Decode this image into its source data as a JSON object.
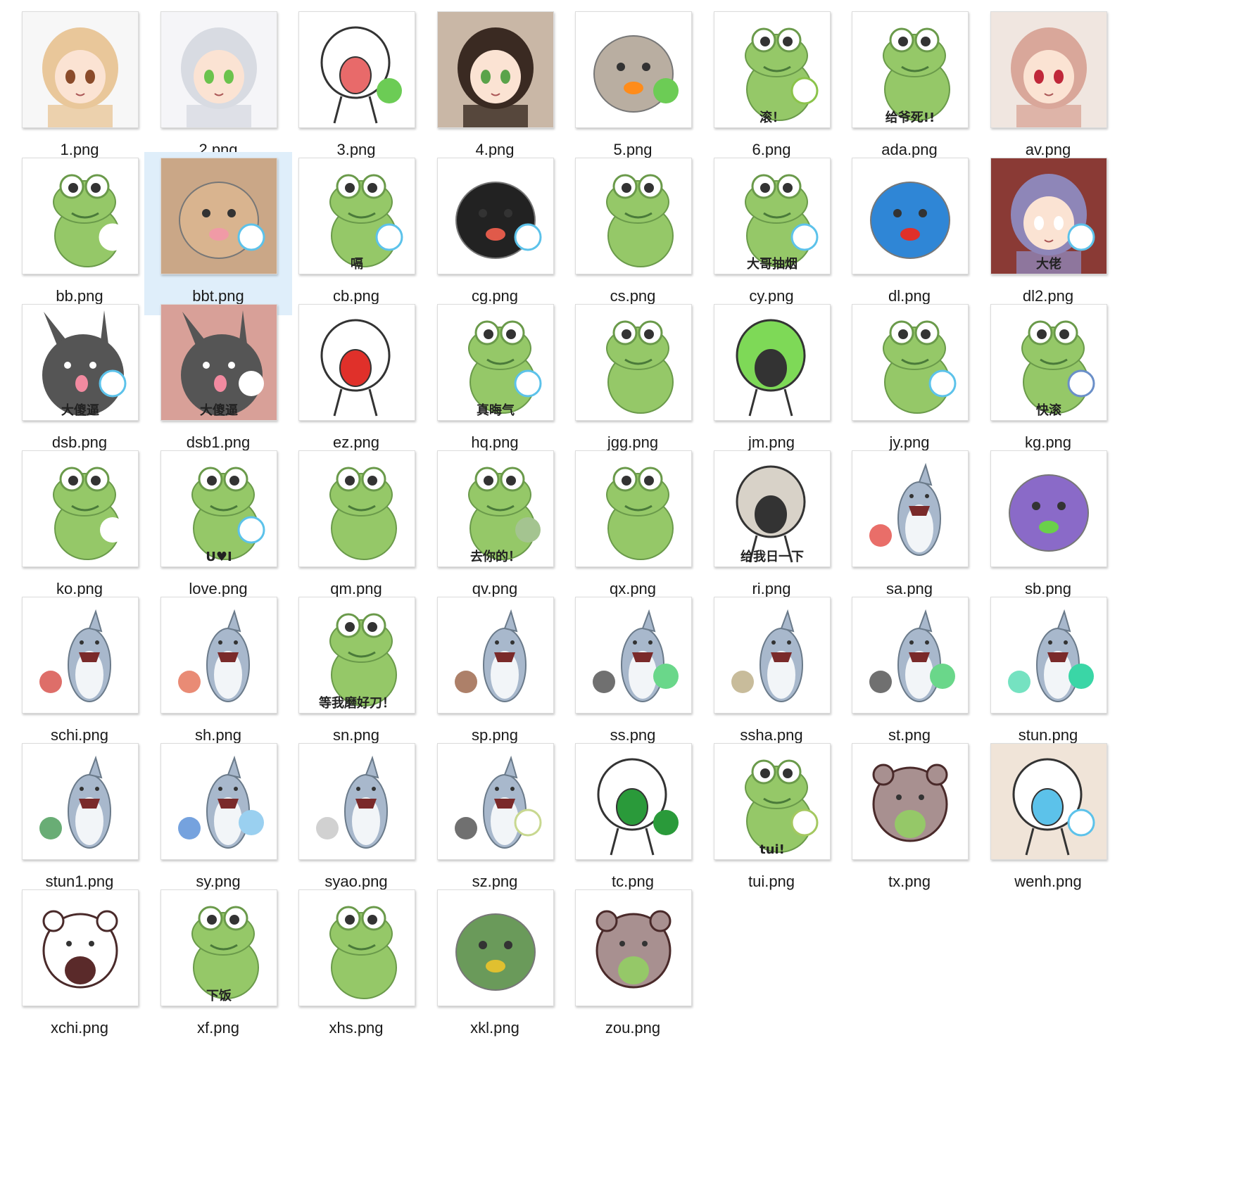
{
  "selected_file": "bbt.png",
  "files": [
    {
      "name": "1.png",
      "icon": "anime-fox-girl-thumbnail",
      "bg": "#f7f7f7",
      "main": "#e9c79a",
      "accent": "#8b4b2a"
    },
    {
      "name": "2.png",
      "icon": "anime-silver-hair-girl-thumbnail",
      "bg": "#f5f5f8",
      "main": "#d8dbe2",
      "accent": "#6bc34d"
    },
    {
      "name": "3.png",
      "icon": "screaming-bunny-thumbnail",
      "bg": "#ffffff",
      "main": "#ffffff",
      "accent": "#e86a6a",
      "dot": "#6ccc55",
      "dot_type": "fill"
    },
    {
      "name": "4.png",
      "icon": "anime-witch-girl-thumbnail",
      "bg": "#c9b7a6",
      "main": "#3a2a22",
      "accent": "#5aa34a"
    },
    {
      "name": "5.png",
      "icon": "pusheen-cat-thumbnail",
      "bg": "#ffffff",
      "main": "#b9aea1",
      "accent": "#ff8c1a",
      "dot": "#6ccc55",
      "dot_type": "fill"
    },
    {
      "name": "6.png",
      "icon": "green-frog-thumbnail",
      "bg": "#ffffff",
      "main": "#95c868",
      "accent": "#333333",
      "dot": "#8bc34a",
      "dot_type": "ring",
      "caption": "滚！"
    },
    {
      "name": "ada.png",
      "icon": "angry-frog-thumbnail",
      "bg": "#ffffff",
      "main": "#95c868",
      "accent": "#2d8fe0",
      "caption": "给爷死!!"
    },
    {
      "name": "av.png",
      "icon": "magazine-cover-thumbnail",
      "bg": "#f0e6e0",
      "main": "#d9a79a",
      "accent": "#c0283a"
    },
    {
      "name": "bb.png",
      "icon": "frog-hugging-thumbnail",
      "bg": "#ffffff",
      "main": "#95c868",
      "accent": "#f2a3b3",
      "dot": "#ffffff",
      "dot_type": "ring"
    },
    {
      "name": "bbt.png",
      "icon": "cat-licking-thumbnail",
      "bg": "#caa787",
      "main": "#d9b48f",
      "accent": "#f09aa6",
      "dot": "#5cc2ea",
      "dot_type": "ring"
    },
    {
      "name": "cb.png",
      "icon": "frog-thumbnail",
      "bg": "#ffffff",
      "main": "#95c868",
      "accent": "#333333",
      "dot": "#5cc2ea",
      "dot_type": "ring",
      "caption": "嗝"
    },
    {
      "name": "cg.png",
      "icon": "panda-meme-thumbnail",
      "bg": "#ffffff",
      "main": "#222222",
      "accent": "#e05a4a",
      "dot": "#5cc2ea",
      "dot_type": "ring"
    },
    {
      "name": "cs.png",
      "icon": "frog-thumbnail",
      "bg": "#ffffff",
      "main": "#95c868",
      "accent": "#9a6a3a"
    },
    {
      "name": "cy.png",
      "icon": "frog-smoking-thumbnail",
      "bg": "#ffffff",
      "main": "#95c868",
      "accent": "#c0283a",
      "dot": "#5cc2ea",
      "dot_type": "ring",
      "caption": "大哥抽烟"
    },
    {
      "name": "dl.png",
      "icon": "doraemon-thumbnail",
      "bg": "#ffffff",
      "main": "#2f86d6",
      "accent": "#e0302a"
    },
    {
      "name": "dl2.png",
      "icon": "purple-hair-character-thumbnail",
      "bg": "#8a3a35",
      "main": "#8e86b8",
      "accent": "#ffffff",
      "dot": "#5cc2ea",
      "dot_type": "ring",
      "caption": "大佬"
    },
    {
      "name": "dsb.png",
      "icon": "gray-bunny-thumbnail",
      "bg": "#ffffff",
      "main": "#555555",
      "accent": "#f28aa0",
      "dot": "#5cc2ea",
      "dot_type": "ring",
      "caption": "大傻逼"
    },
    {
      "name": "dsb1.png",
      "icon": "gray-bunny-thumbnail",
      "bg": "#d8a098",
      "main": "#555555",
      "accent": "#f28aa0",
      "dot": "#ffffff",
      "dot_type": "fill",
      "caption": "大傻逼"
    },
    {
      "name": "ez.png",
      "icon": "doodle-couple-thumbnail",
      "bg": "#ffffff",
      "main": "#ffffff",
      "accent": "#e0302a"
    },
    {
      "name": "hq.png",
      "icon": "angry-frog-thumbnail",
      "bg": "#ffffff",
      "main": "#95c868",
      "accent": "#9a6a3a",
      "dot": "#5cc2ea",
      "dot_type": "ring",
      "caption": "真晦气"
    },
    {
      "name": "jgg.png",
      "icon": "frog-with-pig-thumbnail",
      "bg": "#ffffff",
      "main": "#95c868",
      "accent": "#f4a3a8"
    },
    {
      "name": "jm.png",
      "icon": "doodle-friends-thumbnail",
      "bg": "#ffffff",
      "main": "#7ed957",
      "accent": "#333333"
    },
    {
      "name": "jy.png",
      "icon": "frog-in-jail-thumbnail",
      "bg": "#ffffff",
      "main": "#95c868",
      "accent": "#888888",
      "dot": "#5cc2ea",
      "dot_type": "ring"
    },
    {
      "name": "kg.png",
      "icon": "frog-with-hat-thumbnail",
      "bg": "#ffffff",
      "main": "#95c868",
      "accent": "#6a8fc8",
      "dot": "#6a8fc8",
      "dot_type": "ring",
      "caption": "快滚"
    },
    {
      "name": "ko.png",
      "icon": "frog-punched-thumbnail",
      "bg": "#ffffff",
      "main": "#95c868",
      "accent": "#e0302a",
      "dot": "#ffffff",
      "dot_type": "fill"
    },
    {
      "name": "love.png",
      "icon": "frog-with-sign-thumbnail",
      "bg": "#ffffff",
      "main": "#95c868",
      "accent": "#e07a9a",
      "dot": "#5cc2ea",
      "dot_type": "ring",
      "caption": "U♥I"
    },
    {
      "name": "qm.png",
      "icon": "frog-riding-horse-thumbnail",
      "bg": "#ffffff",
      "main": "#95c868",
      "accent": "#c48a55"
    },
    {
      "name": "qv.png",
      "icon": "frog-with-slipper-thumbnail",
      "bg": "#ffffff",
      "main": "#95c868",
      "accent": "#3a7ad0",
      "dot": "#a4c490",
      "dot_type": "fill",
      "caption": "去你的！"
    },
    {
      "name": "qx.png",
      "icon": "frog-on-bear-thumbnail",
      "bg": "#ffffff",
      "main": "#95c868",
      "accent": "#a89690"
    },
    {
      "name": "ri.png",
      "icon": "doodle-meme-thumbnail",
      "bg": "#ffffff",
      "main": "#d8d2c8",
      "accent": "#333333",
      "caption": "给我日一下"
    },
    {
      "name": "sa.png",
      "icon": "shark-thumbnail",
      "bg": "#ffffff",
      "main": "#a8b8cc",
      "accent": "#e0302a"
    },
    {
      "name": "sb.png",
      "icon": "robot-character-thumbnail",
      "bg": "#ffffff",
      "main": "#8a6ac8",
      "accent": "#6ad04a"
    },
    {
      "name": "schi.png",
      "icon": "shark-thumbnail",
      "bg": "#ffffff",
      "main": "#a8b8cc",
      "accent": "#d0302a"
    },
    {
      "name": "sh.png",
      "icon": "shark-painter-thumbnail",
      "bg": "#ffffff",
      "main": "#a8b8cc",
      "accent": "#e05a3a"
    },
    {
      "name": "sn.png",
      "icon": "frog-sharpening-knife-thumbnail",
      "bg": "#ffffff",
      "main": "#95c868",
      "accent": "#555555",
      "caption": "等我磨好刀！"
    },
    {
      "name": "sp.png",
      "icon": "shark-pirate-cannon-thumbnail",
      "bg": "#ffffff",
      "main": "#a8b8cc",
      "accent": "#8a4a2a"
    },
    {
      "name": "ss.png",
      "icon": "shark-thumbnail",
      "bg": "#ffffff",
      "main": "#a8b8cc",
      "accent": "#333333",
      "dot": "#6ad78a",
      "dot_type": "fill"
    },
    {
      "name": "ssha.png",
      "icon": "shark-with-sword-thumbnail",
      "bg": "#ffffff",
      "main": "#a8b8cc",
      "accent": "#b0a070"
    },
    {
      "name": "st.png",
      "icon": "shark-kicking-thumbnail",
      "bg": "#ffffff",
      "main": "#a8b8cc",
      "accent": "#333333",
      "dot": "#6ad78a",
      "dot_type": "fill"
    },
    {
      "name": "stun.png",
      "icon": "shark-lying-thumbnail",
      "bg": "#ffffff",
      "main": "#a8b8cc",
      "accent": "#3ad6a6",
      "dot": "#3ad6a6",
      "dot_type": "fill"
    },
    {
      "name": "stun1.png",
      "icon": "shark-with-watermelon-thumbnail",
      "bg": "#ffffff",
      "main": "#a8b8cc",
      "accent": "#2a8a3a"
    },
    {
      "name": "sy.png",
      "icon": "shark-with-fish-thumbnail",
      "bg": "#ffffff",
      "main": "#a8b8cc",
      "accent": "#3a7ad0",
      "dot": "#9ad0f0",
      "dot_type": "fill"
    },
    {
      "name": "syao.png",
      "icon": "shark-with-moon-thumbnail",
      "bg": "#ffffff",
      "main": "#a8b8cc",
      "accent": "#bdbdbd"
    },
    {
      "name": "sz.png",
      "icon": "shark-standing-thumbnail",
      "bg": "#ffffff",
      "main": "#a8b8cc",
      "accent": "#333333",
      "dot": "#c8d890",
      "dot_type": "ring"
    },
    {
      "name": "tc.png",
      "icon": "doodle-kick-thumbnail",
      "bg": "#ffffff",
      "main": "#ffffff",
      "accent": "#2a9a3a",
      "dot": "#2a9a3a",
      "dot_type": "fill"
    },
    {
      "name": "tui.png",
      "icon": "frog-spitting-thumbnail",
      "bg": "#ffffff",
      "main": "#95c868",
      "accent": "#333333",
      "dot": "#a4c860",
      "dot_type": "ring",
      "caption": "tui!"
    },
    {
      "name": "tx.png",
      "icon": "bear-and-frog-thumbnail",
      "bg": "#ffffff",
      "main": "#a89090",
      "accent": "#95c868"
    },
    {
      "name": "wenh.png",
      "icon": "bunny-question-thumbnail",
      "bg": "#f0e4d8",
      "main": "#ffffff",
      "accent": "#5cc2ea",
      "dot": "#5cc2ea",
      "dot_type": "ring"
    },
    {
      "name": "xchi.png",
      "icon": "bear-eating-thumbnail",
      "bg": "#ffffff",
      "main": "#ffffff",
      "accent": "#5a2a2a"
    },
    {
      "name": "xf.png",
      "icon": "frog-eating-rice-thumbnail",
      "bg": "#ffffff",
      "main": "#95c868",
      "accent": "#3a7ad0",
      "caption": "下饭"
    },
    {
      "name": "xhs.png",
      "icon": "frog-reading-book-thumbnail",
      "bg": "#ffffff",
      "main": "#95c868",
      "accent": "#5a8ac8"
    },
    {
      "name": "xkl.png",
      "icon": "dinosaur-thumbnail",
      "bg": "#ffffff",
      "main": "#6a9a5a",
      "accent": "#e0c030"
    },
    {
      "name": "zou.png",
      "icon": "bear-and-frog-thumbnail",
      "bg": "#ffffff",
      "main": "#a89090",
      "accent": "#95c868"
    }
  ]
}
